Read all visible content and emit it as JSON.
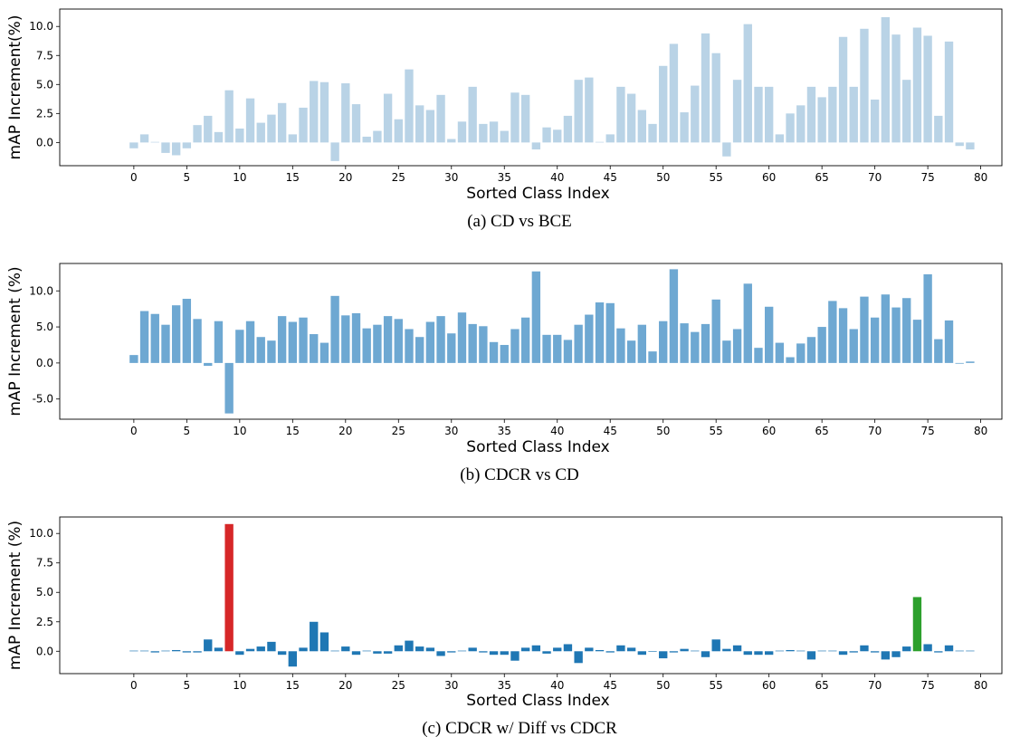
{
  "chart_data": [
    {
      "type": "bar",
      "caption": "(a) CD vs BCE",
      "xlabel": "Sorted Class Index",
      "ylabel": "mAP Increment(%)",
      "xlim": [
        -7,
        82
      ],
      "ylim": [
        -2.0,
        11.5
      ],
      "xticks": [
        0,
        5,
        10,
        15,
        20,
        25,
        30,
        35,
        40,
        45,
        50,
        55,
        60,
        65,
        70,
        75,
        80
      ],
      "yticks": [
        0.0,
        2.5,
        5.0,
        7.5,
        10.0
      ],
      "ytick_labels": [
        "0.0",
        "2.5",
        "5.0",
        "7.5",
        "10.0"
      ],
      "bar_color": "#b9d3e6",
      "colors": {},
      "values": [
        -0.5,
        0.7,
        0.05,
        -0.9,
        -1.1,
        -0.5,
        1.5,
        2.3,
        0.9,
        4.5,
        1.2,
        3.8,
        1.7,
        2.4,
        3.4,
        0.7,
        3.0,
        5.3,
        5.2,
        -1.6,
        5.1,
        3.3,
        0.5,
        1.0,
        4.2,
        2.0,
        6.3,
        3.2,
        2.8,
        4.1,
        0.3,
        1.8,
        4.8,
        1.6,
        1.8,
        1.0,
        4.3,
        4.1,
        -0.6,
        1.3,
        1.1,
        2.3,
        5.4,
        5.6,
        0.05,
        0.7,
        4.8,
        4.2,
        2.8,
        1.6,
        6.6,
        8.5,
        2.6,
        4.9,
        9.4,
        7.7,
        -1.2,
        5.4,
        10.2,
        4.8,
        4.8,
        0.7,
        2.5,
        3.2,
        4.8,
        3.9,
        4.8,
        9.1,
        4.8,
        9.8,
        3.7,
        10.8,
        9.3,
        5.4,
        9.9,
        9.2,
        2.3,
        8.7,
        -0.3,
        -0.6
      ]
    },
    {
      "type": "bar",
      "caption": "(b) CDCR vs CD",
      "xlabel": "Sorted Class Index",
      "ylabel": "mAP Increment (%)",
      "xlim": [
        -7,
        82
      ],
      "ylim": [
        -7.8,
        13.8
      ],
      "xticks": [
        0,
        5,
        10,
        15,
        20,
        25,
        30,
        35,
        40,
        45,
        50,
        55,
        60,
        65,
        70,
        75,
        80
      ],
      "yticks": [
        -5.0,
        0.0,
        5.0,
        10.0
      ],
      "ytick_labels": [
        "-5.0",
        "0.0",
        "5.0",
        "10.0"
      ],
      "bar_color": "#6ea8d2",
      "colors": {},
      "values": [
        1.1,
        7.2,
        6.8,
        5.3,
        8.0,
        8.9,
        6.1,
        -0.4,
        5.8,
        -7.0,
        4.6,
        5.8,
        3.6,
        3.1,
        6.5,
        5.7,
        6.3,
        4.0,
        2.8,
        9.3,
        6.6,
        6.9,
        4.8,
        5.3,
        6.5,
        6.1,
        4.7,
        3.6,
        5.7,
        6.5,
        4.1,
        7.0,
        5.4,
        5.1,
        2.9,
        2.5,
        4.7,
        6.3,
        12.7,
        3.9,
        3.9,
        3.2,
        5.3,
        6.7,
        8.4,
        8.3,
        4.8,
        3.1,
        5.3,
        1.6,
        5.8,
        13.0,
        5.5,
        4.3,
        5.4,
        8.8,
        3.1,
        4.7,
        11.0,
        2.1,
        7.8,
        2.8,
        0.8,
        2.7,
        3.6,
        5.0,
        8.6,
        7.6,
        4.7,
        9.2,
        6.3,
        9.5,
        7.7,
        9.0,
        6.0,
        12.3,
        3.3,
        5.9,
        -0.1,
        0.2
      ]
    },
    {
      "type": "bar",
      "caption": "(c) CDCR w/ Diff vs CDCR",
      "xlabel": "Sorted Class Index",
      "ylabel": "mAP Increment (%)",
      "xlim": [
        -7,
        82
      ],
      "ylim": [
        -1.9,
        11.4
      ],
      "xticks": [
        0,
        5,
        10,
        15,
        20,
        25,
        30,
        35,
        40,
        45,
        50,
        55,
        60,
        65,
        70,
        75,
        80
      ],
      "yticks": [
        0.0,
        2.5,
        5.0,
        7.5,
        10.0
      ],
      "ytick_labels": [
        "0.0",
        "2.5",
        "5.0",
        "7.5",
        "10.0"
      ],
      "bar_color": "#1f77b4",
      "colors": {
        "9": "#d62728",
        "74": "#2ca02c"
      },
      "values": [
        0.05,
        0.05,
        -0.1,
        0.05,
        0.1,
        -0.1,
        -0.1,
        1.0,
        0.3,
        10.8,
        -0.3,
        0.2,
        0.4,
        0.8,
        -0.3,
        -1.3,
        0.3,
        2.5,
        1.6,
        0.05,
        0.4,
        -0.3,
        0.05,
        -0.2,
        -0.2,
        0.5,
        0.9,
        0.4,
        0.3,
        -0.4,
        -0.1,
        0.05,
        0.3,
        -0.1,
        -0.3,
        -0.3,
        -0.8,
        0.3,
        0.5,
        -0.2,
        0.3,
        0.6,
        -1.0,
        0.3,
        0.1,
        -0.1,
        0.5,
        0.3,
        -0.3,
        -0.05,
        -0.6,
        -0.1,
        0.2,
        0.05,
        -0.5,
        1.0,
        0.2,
        0.5,
        -0.3,
        -0.3,
        -0.3,
        0.05,
        0.1,
        0.05,
        -0.7,
        0.05,
        0.05,
        -0.3,
        -0.1,
        0.5,
        -0.1,
        -0.7,
        -0.5,
        0.4,
        4.6,
        0.6,
        -0.1,
        0.5,
        0.05,
        0.05
      ]
    }
  ]
}
